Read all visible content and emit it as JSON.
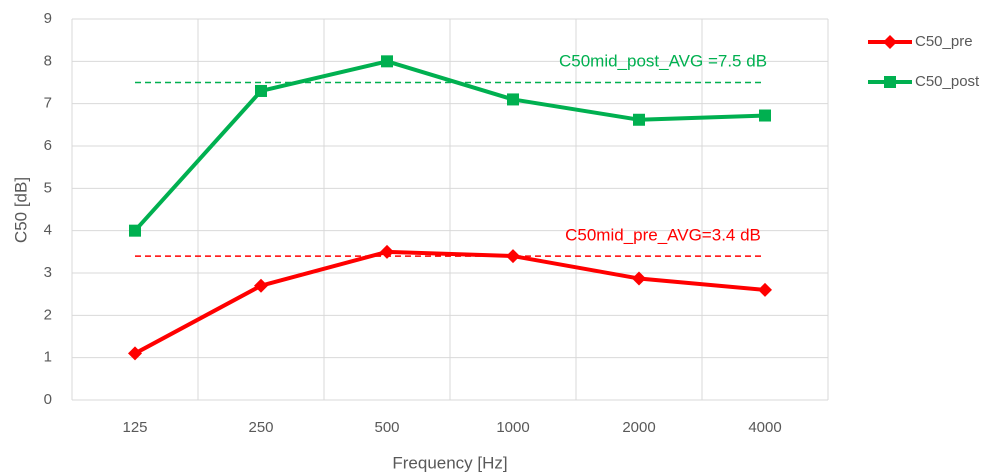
{
  "chart_data": {
    "type": "line",
    "x_label": "Frequency [Hz]",
    "y_label": "C50 [dB]",
    "categories": [
      "125",
      "250",
      "500",
      "1000",
      "2000",
      "4000"
    ],
    "series": [
      {
        "name": "C50_pre",
        "color": "#ff0000",
        "marker": "diamond",
        "values": [
          1.1,
          2.7,
          3.5,
          3.4,
          2.87,
          2.6
        ]
      },
      {
        "name": "C50_post",
        "color": "#00b050",
        "marker": "square",
        "values": [
          4.0,
          7.3,
          8.0,
          7.1,
          6.62,
          6.72
        ]
      }
    ],
    "reference_lines": [
      {
        "value": 7.5,
        "color": "#00b050",
        "label": "C50mid_post_AVG =7.5 dB"
      },
      {
        "value": 3.4,
        "color": "#ff0000",
        "label": "C50mid_pre_AVG=3.4 dB"
      }
    ],
    "ylim": [
      0,
      9
    ],
    "yticks": [
      0,
      1,
      2,
      3,
      4,
      5,
      6,
      7,
      8,
      9
    ],
    "grid": true,
    "legend": "right"
  }
}
